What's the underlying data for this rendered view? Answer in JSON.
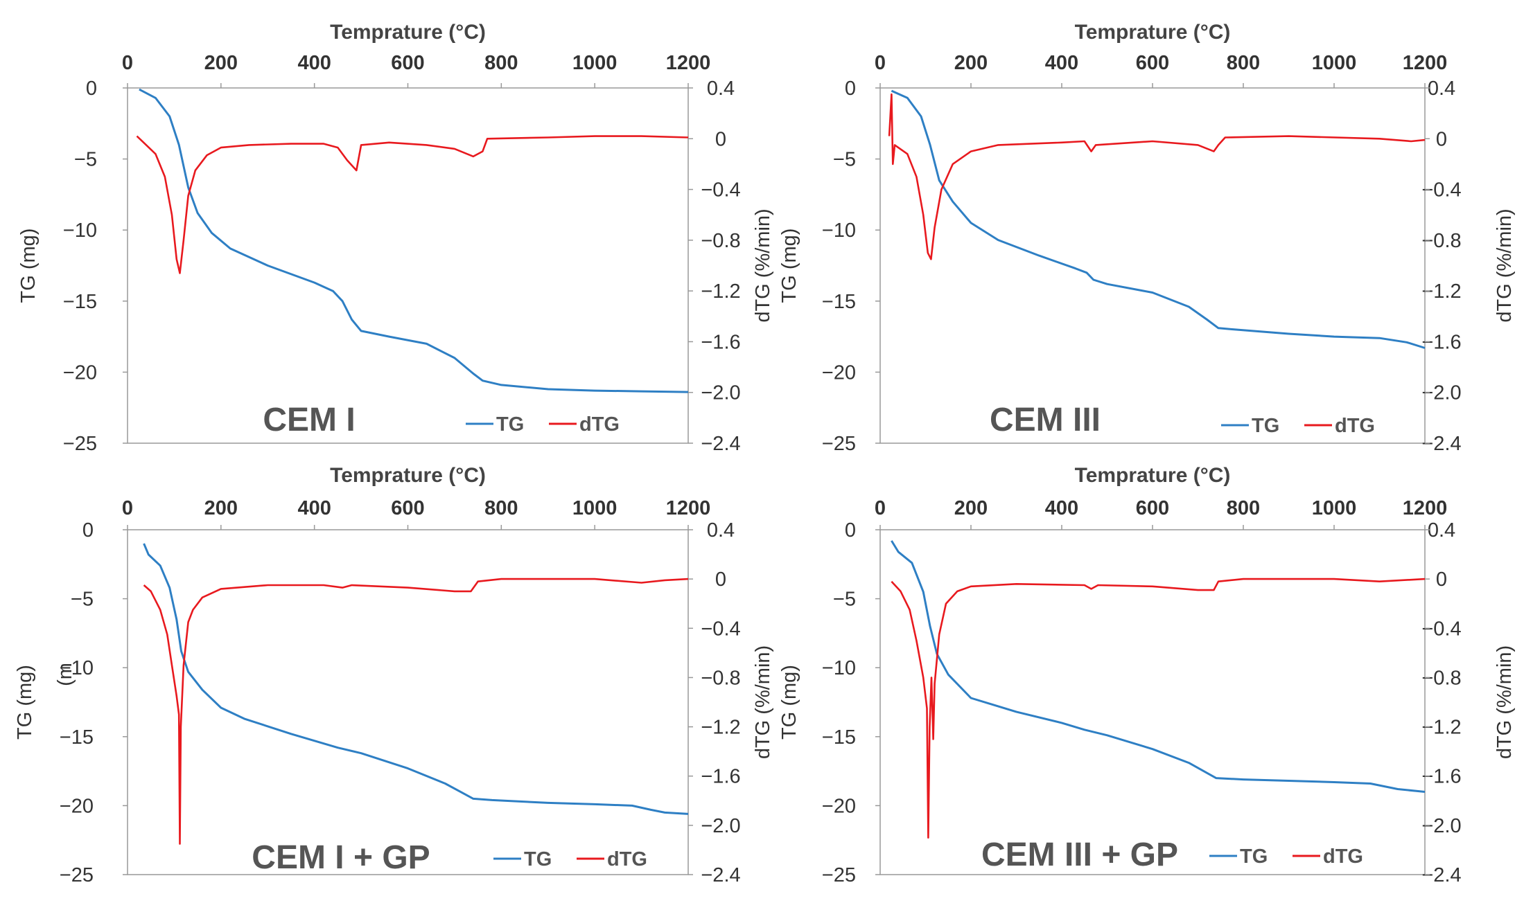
{
  "chart_data": [
    {
      "type": "line",
      "panel_label": "CEM I",
      "xlabel": "Temprature (°C)",
      "ylabel": "TG (mg)",
      "y2label": "dTG (%/min)",
      "xlim": [
        0,
        1200
      ],
      "ylim": [
        -25,
        0
      ],
      "y2lim": [
        -2.4,
        0.4
      ],
      "xticks": [
        "0",
        "200",
        "400",
        "600",
        "800",
        "1000",
        "1200"
      ],
      "yticks": [
        "0",
        "−5",
        "−10",
        "−15",
        "−20",
        "−25"
      ],
      "y2ticks": [
        "0.4",
        "0",
        "−0.4",
        "−0.8",
        "−1.2",
        "−1.6",
        "−2.0",
        "−2.4"
      ],
      "legend": [
        "TG",
        "dTG"
      ],
      "series": [
        {
          "name": "TG",
          "axis": "left",
          "color": "#2e7fc4",
          "points": [
            [
              25,
              -0.1
            ],
            [
              60,
              -0.7
            ],
            [
              90,
              -2.0
            ],
            [
              110,
              -4.0
            ],
            [
              130,
              -7.0
            ],
            [
              150,
              -8.8
            ],
            [
              180,
              -10.2
            ],
            [
              220,
              -11.3
            ],
            [
              300,
              -12.5
            ],
            [
              400,
              -13.7
            ],
            [
              440,
              -14.3
            ],
            [
              460,
              -15.0
            ],
            [
              480,
              -16.3
            ],
            [
              500,
              -17.1
            ],
            [
              560,
              -17.5
            ],
            [
              640,
              -18.0
            ],
            [
              700,
              -19.0
            ],
            [
              740,
              -20.1
            ],
            [
              760,
              -20.6
            ],
            [
              800,
              -20.9
            ],
            [
              900,
              -21.2
            ],
            [
              1000,
              -21.3
            ],
            [
              1100,
              -21.35
            ],
            [
              1200,
              -21.4
            ]
          ]
        },
        {
          "name": "dTG",
          "axis": "right",
          "color": "#e8191e",
          "points": [
            [
              20,
              0.02
            ],
            [
              40,
              -0.05
            ],
            [
              60,
              -0.12
            ],
            [
              80,
              -0.3
            ],
            [
              95,
              -0.6
            ],
            [
              105,
              -0.95
            ],
            [
              112,
              -1.06
            ],
            [
              120,
              -0.8
            ],
            [
              130,
              -0.45
            ],
            [
              145,
              -0.25
            ],
            [
              170,
              -0.13
            ],
            [
              200,
              -0.07
            ],
            [
              260,
              -0.05
            ],
            [
              350,
              -0.04
            ],
            [
              420,
              -0.04
            ],
            [
              450,
              -0.07
            ],
            [
              470,
              -0.17
            ],
            [
              490,
              -0.25
            ],
            [
              500,
              -0.05
            ],
            [
              560,
              -0.03
            ],
            [
              640,
              -0.05
            ],
            [
              700,
              -0.08
            ],
            [
              740,
              -0.14
            ],
            [
              760,
              -0.1
            ],
            [
              770,
              0.0
            ],
            [
              900,
              0.01
            ],
            [
              1000,
              0.02
            ],
            [
              1100,
              0.02
            ],
            [
              1200,
              0.01
            ]
          ]
        }
      ]
    },
    {
      "type": "line",
      "panel_label": "CEM III",
      "xlabel": "Temprature (°C)",
      "ylabel": "TG (mg)",
      "y2label": "dTG (%/min)",
      "xlim": [
        0,
        1200
      ],
      "ylim": [
        -25,
        0
      ],
      "y2lim": [
        -2.4,
        0.4
      ],
      "xticks": [
        "0",
        "200",
        "400",
        "600",
        "800",
        "1000",
        "1200"
      ],
      "yticks": [
        "0",
        "−5",
        "−10",
        "−15",
        "−20",
        "−25"
      ],
      "y2ticks": [
        "0.4",
        "0",
        "−0.4",
        "−0.8",
        "−1.2",
        "−1.6",
        "−2.0",
        "−2.4"
      ],
      "legend": [
        "TG",
        "dTG"
      ],
      "series": [
        {
          "name": "TG",
          "axis": "left",
          "color": "#2e7fc4",
          "points": [
            [
              25,
              -0.2
            ],
            [
              60,
              -0.7
            ],
            [
              90,
              -2.0
            ],
            [
              110,
              -4.0
            ],
            [
              130,
              -6.5
            ],
            [
              160,
              -8.0
            ],
            [
              200,
              -9.5
            ],
            [
              260,
              -10.7
            ],
            [
              350,
              -11.8
            ],
            [
              430,
              -12.7
            ],
            [
              455,
              -13.0
            ],
            [
              470,
              -13.5
            ],
            [
              500,
              -13.8
            ],
            [
              600,
              -14.4
            ],
            [
              680,
              -15.4
            ],
            [
              720,
              -16.3
            ],
            [
              745,
              -16.9
            ],
            [
              780,
              -17.0
            ],
            [
              900,
              -17.3
            ],
            [
              1000,
              -17.5
            ],
            [
              1100,
              -17.6
            ],
            [
              1160,
              -17.9
            ],
            [
              1200,
              -18.3
            ]
          ]
        },
        {
          "name": "dTG",
          "axis": "right",
          "color": "#e8191e",
          "points": [
            [
              20,
              0.02
            ],
            [
              25,
              0.35
            ],
            [
              28,
              -0.2
            ],
            [
              32,
              -0.05
            ],
            [
              60,
              -0.12
            ],
            [
              80,
              -0.3
            ],
            [
              95,
              -0.6
            ],
            [
              105,
              -0.9
            ],
            [
              112,
              -0.95
            ],
            [
              120,
              -0.7
            ],
            [
              135,
              -0.4
            ],
            [
              160,
              -0.2
            ],
            [
              200,
              -0.1
            ],
            [
              260,
              -0.05
            ],
            [
              400,
              -0.03
            ],
            [
              450,
              -0.02
            ],
            [
              465,
              -0.1
            ],
            [
              475,
              -0.05
            ],
            [
              600,
              -0.02
            ],
            [
              700,
              -0.05
            ],
            [
              735,
              -0.1
            ],
            [
              745,
              -0.05
            ],
            [
              760,
              0.01
            ],
            [
              900,
              0.02
            ],
            [
              1100,
              0.0
            ],
            [
              1170,
              -0.02
            ],
            [
              1200,
              -0.01
            ]
          ]
        }
      ]
    },
    {
      "type": "line",
      "panel_label": "CEM I + GP",
      "xlabel": "Temprature (°C)",
      "ylabel": "TG (mg)",
      "y2label": "dTG (%/min)",
      "stray_label": "(m",
      "xlim": [
        0,
        1200
      ],
      "ylim": [
        -25,
        0
      ],
      "y2lim": [
        -2.4,
        0.4
      ],
      "xticks": [
        "0",
        "200",
        "400",
        "600",
        "800",
        "1000",
        "1200"
      ],
      "yticks": [
        "0",
        "−5",
        "−10",
        "−15",
        "−20",
        "−25"
      ],
      "y2ticks": [
        "0.4",
        "0",
        "−0.4",
        "−0.8",
        "−1.2",
        "−1.6",
        "−2.0",
        "−2.4"
      ],
      "legend": [
        "TG",
        "dTG"
      ],
      "series": [
        {
          "name": "TG",
          "axis": "left",
          "color": "#2e7fc4",
          "points": [
            [
              35,
              -1.0
            ],
            [
              45,
              -1.8
            ],
            [
              70,
              -2.6
            ],
            [
              90,
              -4.2
            ],
            [
              105,
              -6.5
            ],
            [
              115,
              -8.8
            ],
            [
              130,
              -10.3
            ],
            [
              160,
              -11.6
            ],
            [
              200,
              -12.9
            ],
            [
              250,
              -13.7
            ],
            [
              350,
              -14.8
            ],
            [
              450,
              -15.8
            ],
            [
              500,
              -16.2
            ],
            [
              600,
              -17.3
            ],
            [
              680,
              -18.4
            ],
            [
              740,
              -19.5
            ],
            [
              780,
              -19.6
            ],
            [
              900,
              -19.8
            ],
            [
              1000,
              -19.9
            ],
            [
              1080,
              -20.0
            ],
            [
              1120,
              -20.3
            ],
            [
              1150,
              -20.5
            ],
            [
              1200,
              -20.6
            ]
          ]
        },
        {
          "name": "dTG",
          "axis": "right",
          "color": "#e8191e",
          "points": [
            [
              35,
              -0.05
            ],
            [
              50,
              -0.1
            ],
            [
              70,
              -0.25
            ],
            [
              85,
              -0.45
            ],
            [
              95,
              -0.7
            ],
            [
              105,
              -0.95
            ],
            [
              110,
              -1.1
            ],
            [
              112,
              -2.15
            ],
            [
              114,
              -1.2
            ],
            [
              120,
              -0.7
            ],
            [
              130,
              -0.35
            ],
            [
              140,
              -0.25
            ],
            [
              160,
              -0.15
            ],
            [
              200,
              -0.08
            ],
            [
              300,
              -0.05
            ],
            [
              420,
              -0.05
            ],
            [
              460,
              -0.07
            ],
            [
              480,
              -0.05
            ],
            [
              600,
              -0.07
            ],
            [
              700,
              -0.1
            ],
            [
              735,
              -0.1
            ],
            [
              750,
              -0.02
            ],
            [
              800,
              0.0
            ],
            [
              900,
              0.0
            ],
            [
              1000,
              0.0
            ],
            [
              1100,
              -0.03
            ],
            [
              1150,
              -0.01
            ],
            [
              1200,
              0.0
            ]
          ]
        }
      ]
    },
    {
      "type": "line",
      "panel_label": "CEM III + GP",
      "xlabel": "Temprature (°C)",
      "ylabel": "TG (mg)",
      "y2label": "dTG (%/min)",
      "xlim": [
        0,
        1200
      ],
      "ylim": [
        -25,
        0
      ],
      "y2lim": [
        -2.4,
        0.4
      ],
      "xticks": [
        "0",
        "200",
        "400",
        "600",
        "800",
        "1000",
        "1200"
      ],
      "yticks": [
        "0",
        "−5",
        "−10",
        "−15",
        "−20",
        "−25"
      ],
      "y2ticks": [
        "0.4",
        "0",
        "−0.4",
        "−0.8",
        "−1.2",
        "−1.6",
        "−2.0",
        "−2.4"
      ],
      "legend": [
        "TG",
        "dTG"
      ],
      "series": [
        {
          "name": "TG",
          "axis": "left",
          "color": "#2e7fc4",
          "points": [
            [
              25,
              -0.8
            ],
            [
              40,
              -1.6
            ],
            [
              70,
              -2.4
            ],
            [
              95,
              -4.5
            ],
            [
              110,
              -7.0
            ],
            [
              125,
              -9.0
            ],
            [
              150,
              -10.5
            ],
            [
              200,
              -12.2
            ],
            [
              300,
              -13.2
            ],
            [
              400,
              -14.0
            ],
            [
              450,
              -14.5
            ],
            [
              500,
              -14.9
            ],
            [
              600,
              -15.9
            ],
            [
              680,
              -16.9
            ],
            [
              740,
              -18.0
            ],
            [
              800,
              -18.1
            ],
            [
              900,
              -18.2
            ],
            [
              1000,
              -18.3
            ],
            [
              1080,
              -18.4
            ],
            [
              1140,
              -18.8
            ],
            [
              1200,
              -19.0
            ]
          ]
        },
        {
          "name": "dTG",
          "axis": "right",
          "color": "#e8191e",
          "points": [
            [
              25,
              -0.02
            ],
            [
              45,
              -0.1
            ],
            [
              65,
              -0.25
            ],
            [
              80,
              -0.5
            ],
            [
              95,
              -0.8
            ],
            [
              103,
              -1.05
            ],
            [
              106,
              -2.1
            ],
            [
              109,
              -1.2
            ],
            [
              113,
              -0.8
            ],
            [
              117,
              -1.3
            ],
            [
              120,
              -0.85
            ],
            [
              130,
              -0.45
            ],
            [
              145,
              -0.2
            ],
            [
              170,
              -0.1
            ],
            [
              200,
              -0.06
            ],
            [
              300,
              -0.04
            ],
            [
              450,
              -0.05
            ],
            [
              465,
              -0.08
            ],
            [
              480,
              -0.05
            ],
            [
              600,
              -0.06
            ],
            [
              700,
              -0.09
            ],
            [
              735,
              -0.09
            ],
            [
              745,
              -0.02
            ],
            [
              800,
              0.0
            ],
            [
              1000,
              0.0
            ],
            [
              1100,
              -0.02
            ],
            [
              1200,
              0.0
            ]
          ]
        }
      ]
    }
  ]
}
